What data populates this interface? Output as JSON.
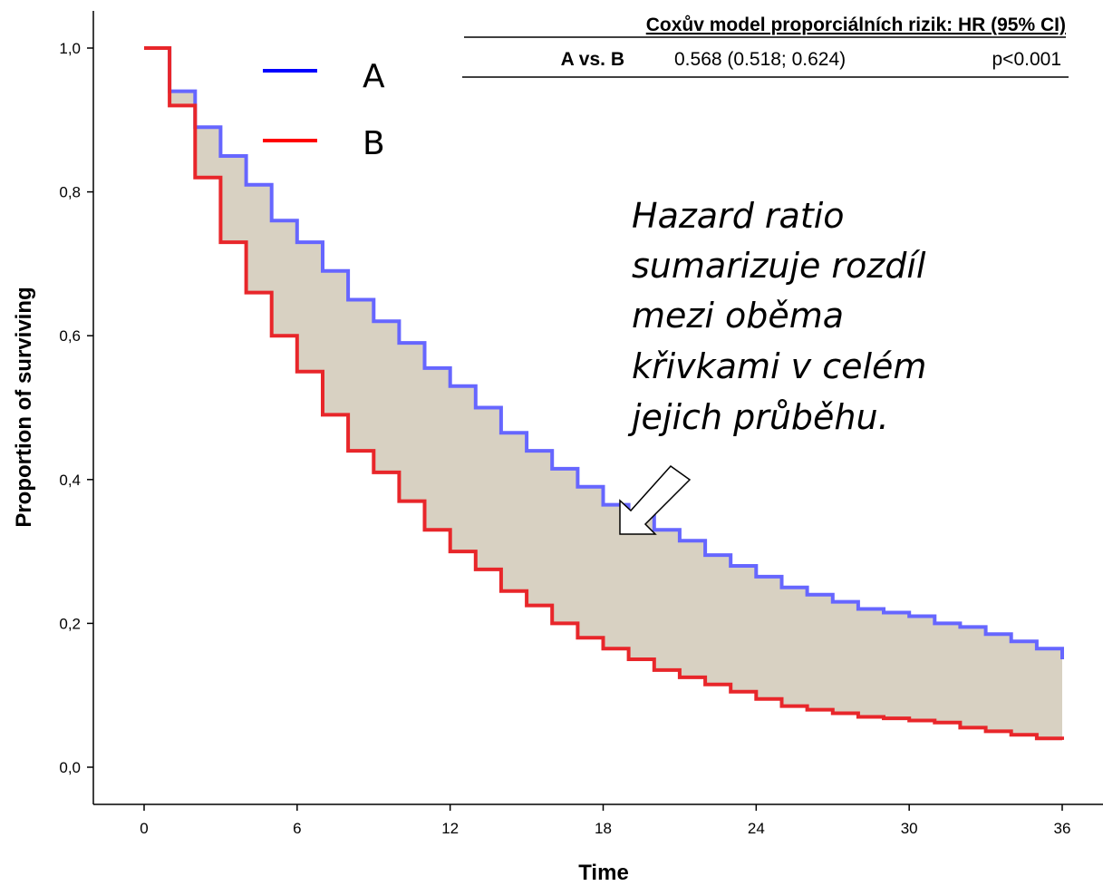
{
  "chart_data": {
    "type": "line",
    "xlabel": "Time",
    "ylabel": "Proportion of surviving",
    "xlim": [
      0,
      36
    ],
    "ylim": [
      0,
      1
    ],
    "x_ticks": [
      "0",
      "6",
      "12",
      "18",
      "24",
      "30",
      "36"
    ],
    "y_ticks": [
      "0,0",
      "0,2",
      "0,4",
      "0,6",
      "0,8",
      "1,0"
    ],
    "grid": false,
    "legend_position": "top-left",
    "shaded_between_series": true,
    "series": [
      {
        "name": "A",
        "color": "#6666ff",
        "legend_color": "#0000ff",
        "x": [
          0,
          1,
          2,
          3,
          4,
          5,
          6,
          7,
          8,
          9,
          10,
          11,
          12,
          13,
          14,
          15,
          16,
          17,
          18,
          19,
          20,
          21,
          22,
          23,
          24,
          25,
          26,
          27,
          28,
          29,
          30,
          31,
          32,
          33,
          34,
          35,
          36
        ],
        "values": [
          1.0,
          0.94,
          0.89,
          0.85,
          0.81,
          0.76,
          0.73,
          0.69,
          0.65,
          0.62,
          0.59,
          0.555,
          0.53,
          0.5,
          0.465,
          0.44,
          0.415,
          0.39,
          0.365,
          0.35,
          0.33,
          0.315,
          0.295,
          0.28,
          0.265,
          0.25,
          0.24,
          0.23,
          0.22,
          0.215,
          0.21,
          0.2,
          0.195,
          0.185,
          0.175,
          0.165,
          0.15
        ]
      },
      {
        "name": "B",
        "color": "#e8262a",
        "legend_color": "#ff0000",
        "x": [
          0,
          1,
          2,
          3,
          4,
          5,
          6,
          7,
          8,
          9,
          10,
          11,
          12,
          13,
          14,
          15,
          16,
          17,
          18,
          19,
          20,
          21,
          22,
          23,
          24,
          25,
          26,
          27,
          28,
          29,
          30,
          31,
          32,
          33,
          34,
          35,
          36
        ],
        "values": [
          1.0,
          0.92,
          0.82,
          0.73,
          0.66,
          0.6,
          0.55,
          0.49,
          0.44,
          0.41,
          0.37,
          0.33,
          0.3,
          0.275,
          0.245,
          0.225,
          0.2,
          0.18,
          0.165,
          0.15,
          0.135,
          0.125,
          0.115,
          0.105,
          0.095,
          0.085,
          0.08,
          0.075,
          0.07,
          0.068,
          0.065,
          0.062,
          0.055,
          0.05,
          0.045,
          0.04,
          0.038
        ]
      }
    ],
    "fill_color": "#d8d1c2",
    "annotation": {
      "lines": [
        "Hazard ratio",
        "sumarizuje rozdíl",
        "mezi oběma",
        "křivkami v celém",
        "jejich průběhu."
      ],
      "arrow_tip": {
        "x": 18.6,
        "y": 0.33
      }
    },
    "hr_table": {
      "title": "Coxův model proporciálních rizik: HR (95% CI)",
      "row": {
        "label": "A vs. B",
        "value": "0.568 (0.518; 0.624)",
        "p": "p<0.001"
      }
    }
  }
}
